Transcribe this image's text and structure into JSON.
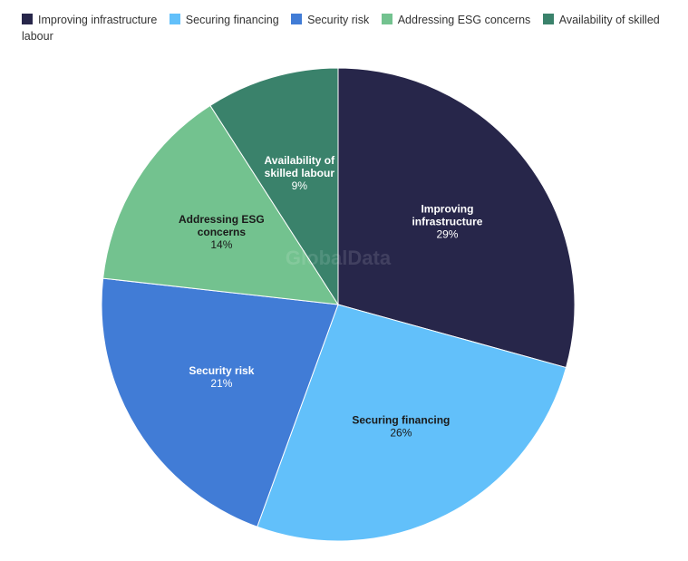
{
  "chart_data": {
    "type": "pie",
    "title": "",
    "categories": [
      "Improving infrastructure",
      "Securing financing",
      "Security risk",
      "Addressing ESG concerns",
      "Availability of skilled labour"
    ],
    "values": [
      29,
      26,
      21,
      14,
      9
    ],
    "value_labels": [
      "29%",
      "26%",
      "21%",
      "14%",
      "9%"
    ],
    "colors": [
      "#27264a",
      "#62c0fa",
      "#417cd6",
      "#73c28f",
      "#3a826b"
    ],
    "label_colors": [
      "#ffffff",
      "#1a1a1a",
      "#ffffff",
      "#1a1a1a",
      "#ffffff"
    ],
    "label_lines": [
      [
        "Improving",
        "infrastructure"
      ],
      [
        "Securing financing"
      ],
      [
        "Security risk"
      ],
      [
        "Addressing ESG",
        "concerns"
      ],
      [
        "Availability of",
        "skilled labour"
      ]
    ],
    "legend_placement": "top-left",
    "start_angle_deg": 0,
    "direction": "clockwise"
  },
  "watermark": "GlobalData"
}
